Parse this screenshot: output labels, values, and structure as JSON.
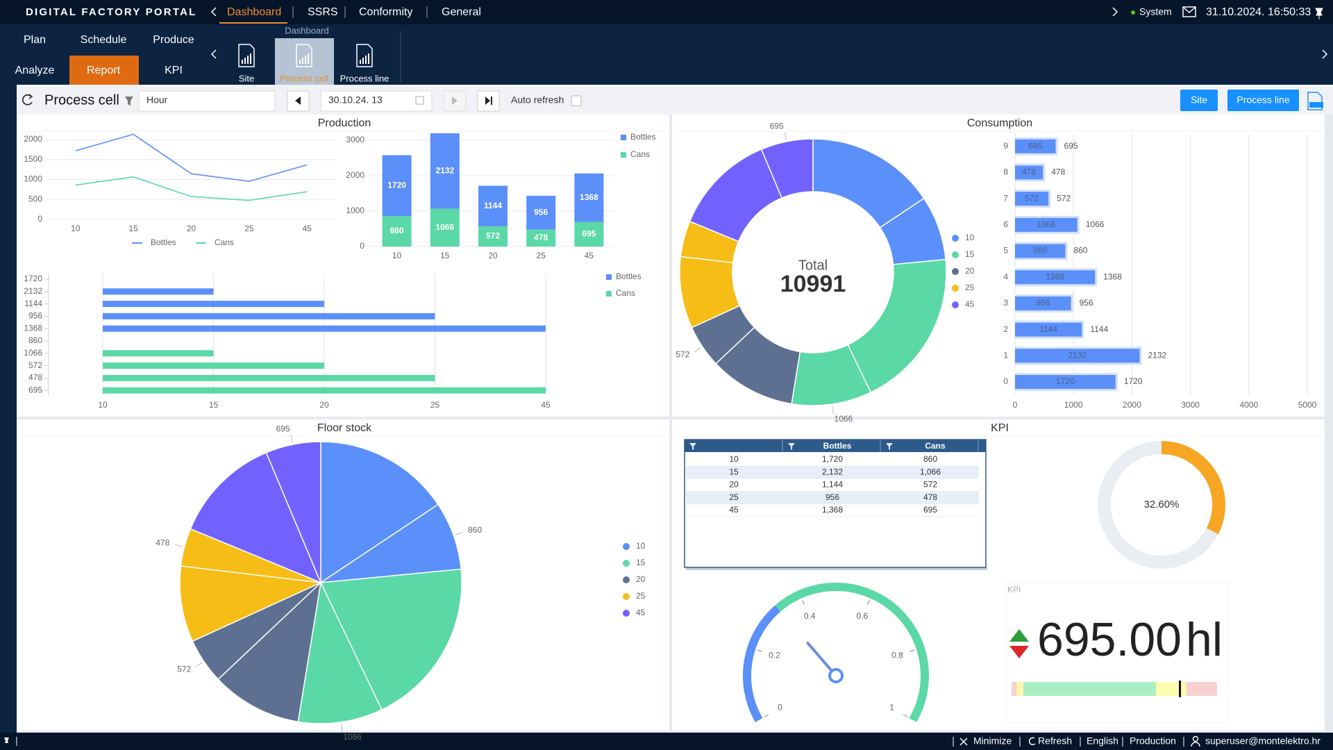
{
  "header": {
    "brand": "DIGITAL FACTORY PORTAL",
    "tabs": [
      "Dashboard",
      "SSRS",
      "Conformity",
      "General"
    ],
    "active_tab": 0,
    "status": "System",
    "datetime": "31.10.2024. 16:50:33"
  },
  "menu": {
    "items": [
      "Plan",
      "Schedule",
      "Produce",
      "Analyze",
      "Report",
      "KPI"
    ],
    "active": 4
  },
  "subnav": {
    "group": "Dashboard",
    "items": [
      "Site",
      "Process cell",
      "Process line"
    ],
    "active": 1
  },
  "toolbar": {
    "title": "Process cell",
    "interval": "Hour",
    "date": "30.10.24. 13",
    "auto_refresh": "Auto refresh",
    "buttons": [
      "Site",
      "Process line"
    ]
  },
  "panels": [
    "Production",
    "Consumption",
    "Floor stock",
    "KPI"
  ],
  "chart_data": [
    {
      "type": "line",
      "categories": [
        "10",
        "15",
        "20",
        "25",
        "45"
      ],
      "series": [
        {
          "name": "Bottles",
          "color": "#5b8ff9",
          "values": [
            1720,
            2132,
            1144,
            956,
            1368
          ]
        },
        {
          "name": "Cans",
          "color": "#5ad8a6",
          "values": [
            860,
            1066,
            572,
            478,
            695
          ]
        }
      ],
      "ylim": [
        0,
        2200
      ],
      "yticks": [
        0,
        500,
        1000,
        1500,
        2000
      ],
      "grid": true,
      "legend": "bottom"
    },
    {
      "type": "stacked_bar",
      "categories": [
        "10",
        "15",
        "20",
        "25",
        "45"
      ],
      "series": [
        {
          "name": "Bottles",
          "color": "#5b8ff9",
          "values": [
            1720,
            2132,
            1144,
            956,
            1368
          ]
        },
        {
          "name": "Cans",
          "color": "#5ad8a6",
          "values": [
            860,
            1066,
            572,
            478,
            695
          ]
        }
      ],
      "ylim": [
        0,
        3200
      ],
      "yticks": [
        0,
        1000,
        2000,
        3000
      ],
      "grid": true,
      "legend": "top-right"
    },
    {
      "type": "hbar_category",
      "categories": [
        "1720",
        "2132",
        "1144",
        "956",
        "1368",
        "860",
        "1066",
        "572",
        "478",
        "695"
      ],
      "series": [
        {
          "name": "Bottles",
          "color": "#5b8ff9",
          "values": [
            10,
            15,
            20,
            25,
            45,
            null,
            null,
            null,
            null,
            null
          ]
        },
        {
          "name": "Cans",
          "color": "#5ad8a6",
          "values": [
            null,
            null,
            null,
            null,
            null,
            10,
            15,
            20,
            25,
            45
          ]
        }
      ],
      "xticks": [
        10,
        15,
        20,
        25,
        45
      ],
      "xscale": "category",
      "grid": true,
      "legend": "top-right"
    },
    {
      "type": "donut",
      "categories": [
        "10",
        "15",
        "20",
        "25",
        "45"
      ],
      "colors": [
        "#5b8ff9",
        "#5ad8a6",
        "#5d7092",
        "#f6bd16",
        "#7262fd"
      ],
      "series": [
        {
          "name": "Bottles",
          "values": [
            1720,
            2132,
            1144,
            956,
            1368
          ]
        },
        {
          "name": "Cans",
          "values": [
            860,
            1066,
            572,
            478,
            695
          ],
          "value_labels": [
            null,
            "1066",
            "572",
            null,
            "695"
          ]
        }
      ],
      "total_label": "Total",
      "total": 10991,
      "legend": "right"
    },
    {
      "type": "hbar",
      "categories": [
        "0",
        "1",
        "2",
        "3",
        "4",
        "5",
        "6",
        "7",
        "8",
        "9"
      ],
      "values": [
        1720,
        2132,
        1144,
        956,
        1368,
        860,
        1066,
        572,
        478,
        695
      ],
      "color": "#5b8ff9",
      "xlim": [
        0,
        5000
      ],
      "xticks": [
        0,
        1000,
        2000,
        3000,
        4000,
        5000
      ],
      "grid": true
    },
    {
      "type": "pie",
      "categories": [
        "10",
        "15",
        "20",
        "25",
        "45"
      ],
      "colors": [
        "#5b8ff9",
        "#5ad8a6",
        "#5d7092",
        "#f6bd16",
        "#7262fd"
      ],
      "series": [
        {
          "name": "Bottles",
          "values": [
            1720,
            2132,
            1144,
            956,
            1368
          ]
        },
        {
          "name": "Cans",
          "values": [
            860,
            1066,
            572,
            478,
            695
          ],
          "value_labels": [
            "860",
            "1066",
            "572",
            "478",
            "695"
          ]
        }
      ],
      "legend": "right"
    },
    {
      "type": "ring",
      "value": 32.6,
      "value_label": "32.60%",
      "ylim": [
        0,
        100
      ],
      "color": "#f6a623"
    },
    {
      "type": "gauge",
      "value": 0.33,
      "ylim": [
        0,
        1
      ],
      "yticks": [
        0,
        0.2,
        0.4,
        0.6,
        0.8,
        1
      ],
      "color": "#5b8ff9"
    },
    {
      "type": "kpi",
      "title": "KPI",
      "value": 695,
      "value_label": "695.00",
      "unit": "hl"
    }
  ],
  "kpi_table": {
    "columns": [
      "Bottles",
      "Cans"
    ],
    "rows": [
      [
        "10",
        "1,720",
        "860"
      ],
      [
        "15",
        "2,132",
        "1,066"
      ],
      [
        "20",
        "1,144",
        "572"
      ],
      [
        "25",
        "956",
        "478"
      ],
      [
        "45",
        "1,368",
        "695"
      ]
    ]
  },
  "footer": {
    "items": [
      "Minimize",
      "Refresh",
      "English",
      "Production",
      "superuser@montelektro.hr"
    ]
  }
}
